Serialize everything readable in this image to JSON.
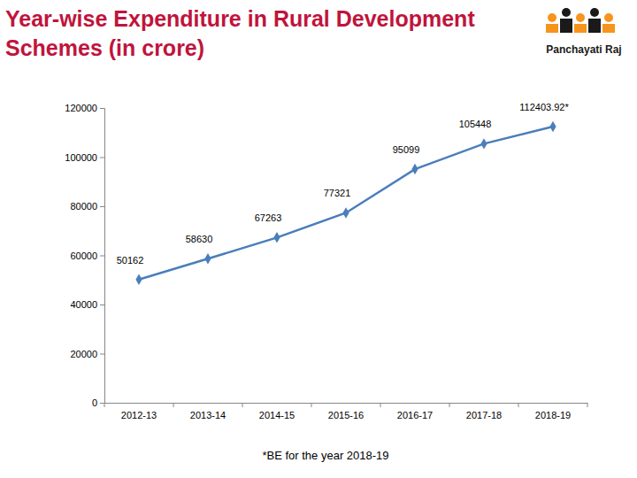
{
  "chart_data": {
    "type": "line",
    "title": "Year-wise Expenditure in Rural Development Schemes (in crore)",
    "categories": [
      "2012-13",
      "2013-14",
      "2014-15",
      "2015-16",
      "2016-17",
      "2017-18",
      "2018-19"
    ],
    "values": [
      50162,
      58630,
      67263,
      77321,
      95099,
      105448,
      112403.92
    ],
    "value_labels": [
      "50162",
      "58630",
      "67263",
      "77321",
      "95099",
      "105448",
      "112403.92*"
    ],
    "color": "#4a7ebb",
    "marker": "diamond",
    "data_labels": true,
    "grid": false,
    "ylim": [
      0,
      120000
    ],
    "yticks": [
      0,
      20000,
      40000,
      60000,
      80000,
      100000,
      120000
    ],
    "annotations": [
      "*BE for the year 2018-19",
      "Panchayati Raj"
    ]
  }
}
